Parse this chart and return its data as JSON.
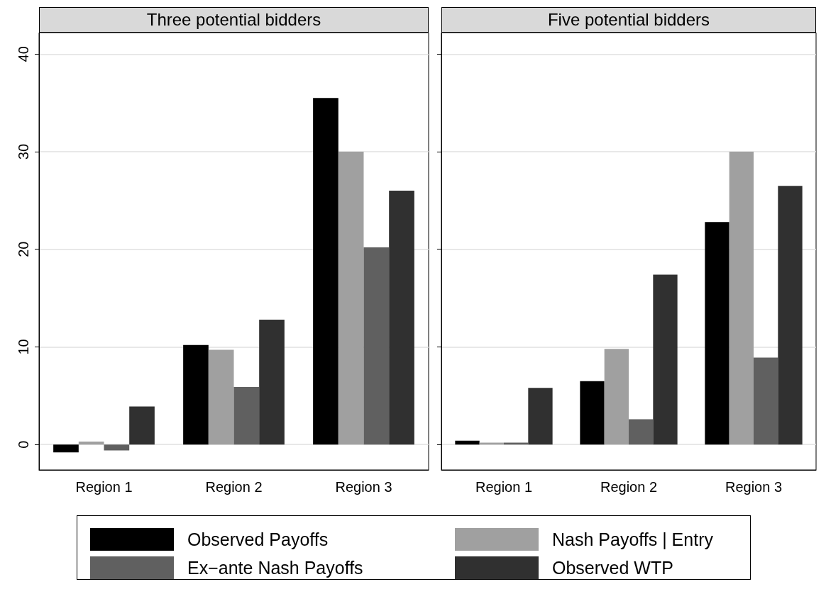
{
  "chart_data": [
    {
      "type": "bar",
      "title": "Three potential bidders",
      "categories": [
        "Region 1",
        "Region 2",
        "Region 3"
      ],
      "ylim": [
        -2.6,
        42.2
      ],
      "yticks": [
        0,
        10,
        20,
        30,
        40
      ],
      "grid": "y",
      "legend": "bottom",
      "series": [
        {
          "name": "Observed Payoffs",
          "color": "#000000",
          "values": [
            -0.8,
            10.2,
            35.5
          ]
        },
        {
          "name": "Nash Payoffs | Entry",
          "color": "#a0a0a0",
          "values": [
            0.3,
            9.7,
            30.0
          ]
        },
        {
          "name": "Ex−ante Nash Payoffs",
          "color": "#606060",
          "values": [
            -0.6,
            5.9,
            20.2
          ]
        },
        {
          "name": "Observed WTP",
          "color": "#303030",
          "values": [
            3.9,
            12.8,
            26.0
          ]
        }
      ]
    },
    {
      "type": "bar",
      "title": "Five potential bidders",
      "categories": [
        "Region 1",
        "Region 2",
        "Region 3"
      ],
      "ylim": [
        -2.6,
        42.2
      ],
      "yticks": [
        0,
        10,
        20,
        30,
        40
      ],
      "grid": "y",
      "legend": false,
      "tick_labels": "x",
      "series": [
        {
          "color": "#000000",
          "values": [
            0.4,
            6.5,
            22.8
          ]
        },
        {
          "color": "#a0a0a0",
          "values": [
            0.2,
            9.8,
            30.0
          ]
        },
        {
          "color": "#606060",
          "values": [
            0.2,
            2.6,
            8.9
          ]
        },
        {
          "color": "#303030",
          "values": [
            5.8,
            17.4,
            26.5
          ]
        }
      ]
    }
  ]
}
